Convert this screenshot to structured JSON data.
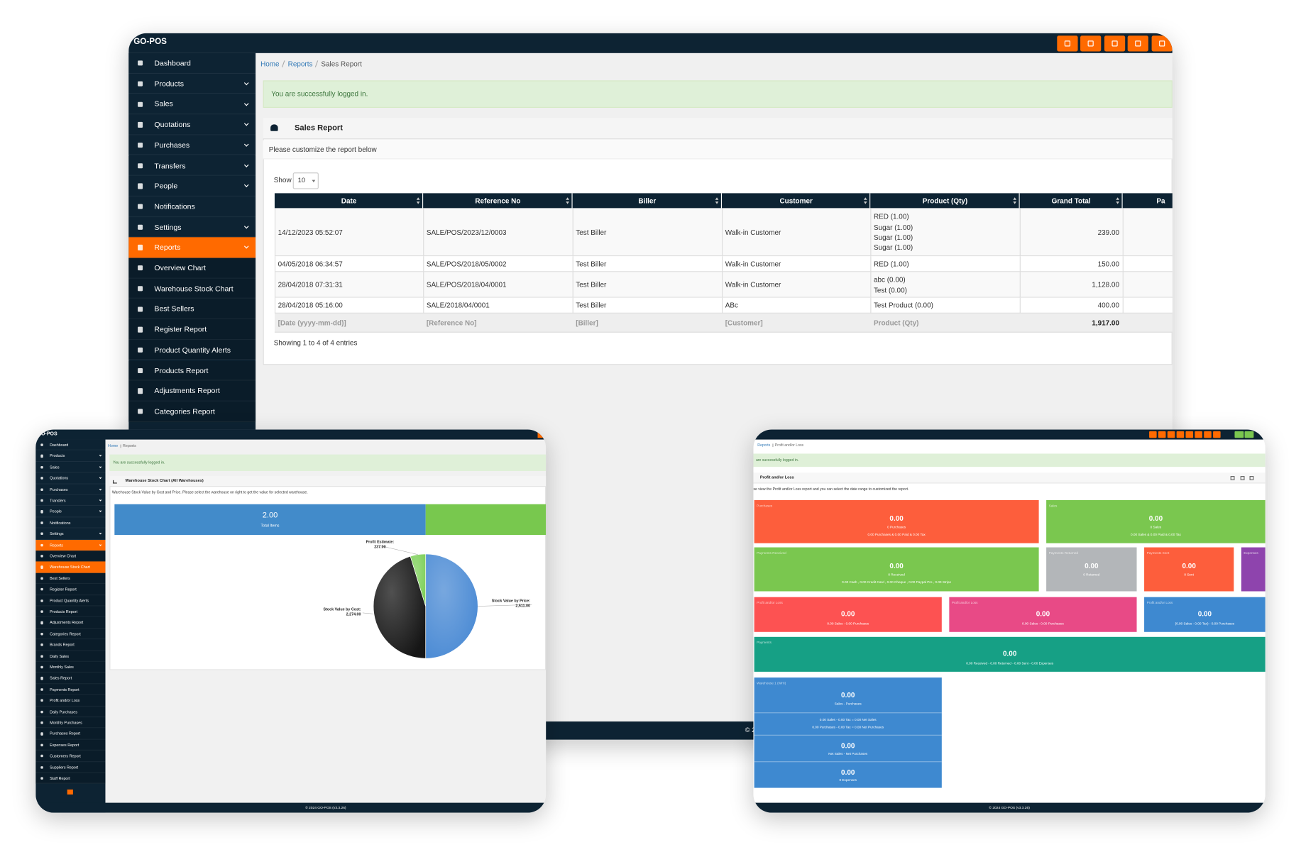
{
  "main_window": {
    "brand": "GO-POS",
    "sidebar": [
      "Dashboard",
      "Products",
      "Sales",
      "Quotations",
      "Purchases",
      "Transfers",
      "People",
      "Notifications",
      "Settings",
      "Reports",
      "Overview Chart",
      "Warehouse Stock Chart",
      "Best Sellers",
      "Register Report",
      "Product Quantity Alerts",
      "Products Report",
      "Adjustments Report",
      "Categories Report"
    ],
    "breadcrumb": [
      "Home",
      "Reports",
      "Sales Report"
    ],
    "alert": "You are successfully logged in.",
    "panel_title": "Sales Report",
    "panel_intro": "Please customize the report below",
    "show_label": "Show",
    "page_size": "10",
    "table": {
      "columns": [
        "Date",
        "Reference No",
        "Biller",
        "Customer",
        "Product (Qty)",
        "Grand Total",
        "Pa"
      ],
      "rows": [
        [
          "14/12/2023 05:52:07",
          "SALE/POS/2023/12/0003",
          "Test Biller",
          "Walk-in Customer",
          [
            "RED (1.00)",
            "Sugar (1.00)",
            "Sugar (1.00)",
            "Sugar (1.00)"
          ],
          "239.00"
        ],
        [
          "04/05/2018 06:34:57",
          "SALE/POS/2018/05/0002",
          "Test Biller",
          "Walk-in Customer",
          [
            "RED (1.00)"
          ],
          "150.00"
        ],
        [
          "28/04/2018 07:31:31",
          "SALE/POS/2018/04/0001",
          "Test Biller",
          "Walk-in Customer",
          [
            "abc (0.00)",
            "Test (0.00)"
          ],
          "1,128.00"
        ],
        [
          "28/04/2018 05:16:00",
          "SALE/2018/04/0001",
          "Test Biller",
          "ABc",
          [
            "Test Product (0.00)"
          ],
          "400.00"
        ]
      ],
      "footer": [
        "[Date (yyyy-mm-dd)]",
        "[Reference No]",
        "[Biller]",
        "[Customer]",
        "Product (Qty)",
        "1,917.00"
      ]
    },
    "info": "Showing 1 to 4 of 4 entries",
    "copyright": "© 2"
  },
  "stock_window": {
    "brand": "GO-POS",
    "sidebar": [
      "Dashboard",
      "Products",
      "Sales",
      "Quotations",
      "Purchases",
      "Transfers",
      "People",
      "Notifications",
      "Settings",
      "Reports",
      "Overview Chart",
      "Warehouse Stock Chart",
      "Best Sellers",
      "Register Report",
      "Product Quantity Alerts",
      "Products Report",
      "Adjustments Report",
      "Categories Report",
      "Brands Report",
      "Daily Sales",
      "Monthly Sales",
      "Sales Report",
      "Payments Report",
      "Profit and/or Loss",
      "Daily Purchases",
      "Monthly Purchases",
      "Purchases Report",
      "Expenses Report",
      "Customers Report",
      "Suppliers Report",
      "Staff Report"
    ],
    "breadcrumb": [
      "Home",
      "Reports"
    ],
    "alert": "You are successfully logged in.",
    "panel_title": "Warehouse Stock Chart (All Warehouses)",
    "panel_intro": "Warehouse Stock Value by Cost and Price. Please select the warehouse on right to get the value for selected warehouse.",
    "total_items": {
      "value": "2.00",
      "label": "Total Items"
    },
    "chart_data": {
      "type": "pie",
      "categories": [
        "Stock Value by Price:",
        "Stock Value by Cost:",
        "Profit Estimate:"
      ],
      "values": [
        2511,
        2274,
        237
      ],
      "value_labels": [
        "2,511.00",
        "2,274.00",
        "237.00"
      ],
      "colors": [
        "#4a8ad4",
        "#161616",
        "#7ed05a"
      ]
    },
    "copyright": "© 2024 GO-POS (v3.3.26)"
  },
  "profit_window": {
    "breadcrumb": [
      "Reports",
      "Profit and/or Loss"
    ],
    "alert": "are successfully logged in.",
    "panel_title": "Profit and/or Loss",
    "panel_intro": "se view the Profit and/or Loss report and you can select the date range to customized the report.",
    "cards": [
      {
        "label": "Purchases",
        "amount": "0.00",
        "count": "0 Purchases",
        "detail": "0.00 Purchases & 0.00 Paid & 0.00 Tax"
      },
      {
        "label": "Sales",
        "amount": "0.00",
        "count": "0 Sales",
        "detail": "0.00 Sales & 0.00 Paid & 0.00 Tax"
      },
      {
        "label": "Payments Received",
        "amount": "0.00",
        "count": "0 Received",
        "detail": "0.00 Cash , 0.00 Credit Card , 0.00 Cheque , 0.00 Paypal Pro , 0.00 Stripe"
      },
      {
        "label": "Payments Returned",
        "amount": "0.00",
        "count": "0 Returned"
      },
      {
        "label": "Payments Sent",
        "amount": "0.00",
        "count": "0 Sent"
      },
      {
        "label": "Expenses"
      },
      {
        "label": "Profit and/or Loss",
        "amount": "0.00",
        "detail": "0.00 Sales - 0.00 Purchases"
      },
      {
        "label": "Profit and/or Loss",
        "amount": "0.00",
        "detail": "0.00 Sales - 0.00 Purchases"
      },
      {
        "label": "Profit and/or Loss",
        "amount": "0.00",
        "detail": "(0.00 Sales - 0.00 Tax) - 0.00 Purchases"
      },
      {
        "label": "Payments",
        "amount": "0.00",
        "detail": "0.00 Received - 0.00 Returned - 0.00 Sent - 0.00 Expenses"
      }
    ],
    "warehouse": {
      "label": "Warehouse 1 (WHI)",
      "lines": [
        "0.00",
        "Sales - Purchases",
        "0.00 Sales - 0.00 Tax = 0.00 Net Sales",
        "0.00 Purchases - 0.00 Tax = 0.00 Net Purchases",
        "0.00",
        "Net Sales - Net Purchases",
        "0.00",
        "0 Expenses"
      ]
    },
    "copyright": "© 2024 GO-POS (v3.3.26)"
  }
}
